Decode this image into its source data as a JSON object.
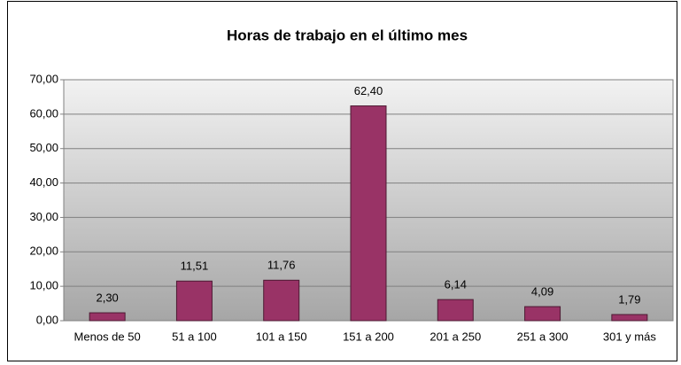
{
  "chart_data": {
    "type": "bar",
    "title": "Horas de trabajo en el último mes",
    "categories": [
      "Menos de 50",
      "51 a 100",
      "101 a 150",
      "151 a 200",
      "201 a 250",
      "251 a 300",
      "301 y más"
    ],
    "values": [
      2.3,
      11.51,
      11.76,
      62.4,
      6.14,
      4.09,
      1.79
    ],
    "value_labels": [
      "2,30",
      "11,51",
      "11,76",
      "62,40",
      "6,14",
      "4,09",
      "1,79"
    ],
    "color": "#993366",
    "ylim": [
      0,
      70
    ],
    "yticks": [
      {
        "value": 0,
        "label": "0,00"
      },
      {
        "value": 10,
        "label": "10,00"
      },
      {
        "value": 20,
        "label": "20,00"
      },
      {
        "value": 30,
        "label": "30,00"
      },
      {
        "value": 40,
        "label": "40,00"
      },
      {
        "value": 50,
        "label": "50,00"
      },
      {
        "value": 60,
        "label": "60,00"
      },
      {
        "value": 70,
        "label": "70,00"
      }
    ],
    "grid": true
  }
}
